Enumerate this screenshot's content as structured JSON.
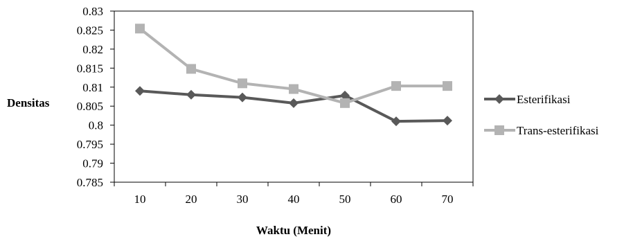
{
  "chart_data": {
    "type": "line",
    "categories": [
      "10",
      "20",
      "30",
      "40",
      "50",
      "60",
      "70"
    ],
    "x": [
      10,
      20,
      30,
      40,
      50,
      60,
      70
    ],
    "xlabel": "Waktu (Menit)",
    "ylabel": "Densitas",
    "ylim": [
      0.785,
      0.83
    ],
    "yticks": [
      "0.83",
      "0.825",
      "0.82",
      "0.815",
      "0.81",
      "0.805",
      "0.8",
      "0.795",
      "0.79",
      "0.785"
    ],
    "grid": false,
    "legend_position": "right",
    "series": [
      {
        "name": "Esterifikasi",
        "values": [
          0.809,
          0.808,
          0.8073,
          0.8058,
          0.8078,
          0.801,
          0.8012
        ],
        "color": "#595959",
        "marker": "diamond"
      },
      {
        "name": "Trans-esterifikasi",
        "values": [
          0.8254,
          0.8148,
          0.811,
          0.8095,
          0.8058,
          0.8103,
          0.8103
        ],
        "color": "#b3b3b3",
        "marker": "square"
      }
    ]
  }
}
